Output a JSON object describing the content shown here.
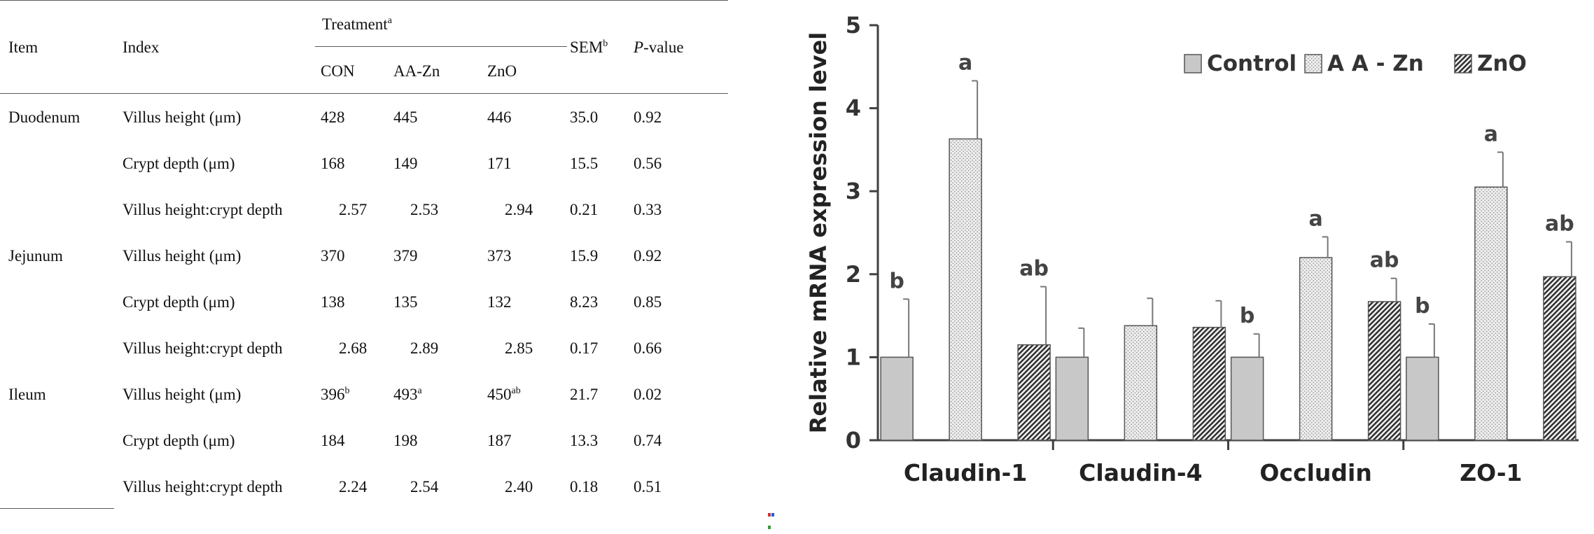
{
  "table": {
    "headers": {
      "item": "Item",
      "index": "Index",
      "treatment": "Treatment",
      "treatment_sup": "a",
      "sem": "SEM",
      "sem_sup": "b",
      "pvalue_italic": "P",
      "pvalue_rest": "-value",
      "groups": [
        "CON",
        "AA-Zn",
        "ZnO"
      ]
    },
    "rows": [
      {
        "item": "Duodenum",
        "index": "Villus height (μm)",
        "con": "428",
        "con_sup": "",
        "aazn": "445",
        "aazn_sup": "",
        "zno": "446",
        "zno_sup": "",
        "sem": "35.0",
        "p": "0.92"
      },
      {
        "item": "",
        "index": "Crypt depth (μm)",
        "con": "168",
        "con_sup": "",
        "aazn": "149",
        "aazn_sup": "",
        "zno": "171",
        "zno_sup": "",
        "sem": "15.5",
        "p": "0.56"
      },
      {
        "item": "",
        "index": "Villus height:crypt depth",
        "con": "2.57",
        "con_sup": "",
        "aazn": "2.53",
        "aazn_sup": "",
        "zno": "2.94",
        "zno_sup": "",
        "sem": "0.21",
        "p": "0.33"
      },
      {
        "item": "Jejunum",
        "index": "Villus height (μm)",
        "con": "370",
        "con_sup": "",
        "aazn": "379",
        "aazn_sup": "",
        "zno": "373",
        "zno_sup": "",
        "sem": "15.9",
        "p": "0.92"
      },
      {
        "item": "",
        "index": "Crypt depth (μm)",
        "con": "138",
        "con_sup": "",
        "aazn": "135",
        "aazn_sup": "",
        "zno": "132",
        "zno_sup": "",
        "sem": "8.23",
        "p": "0.85"
      },
      {
        "item": "",
        "index": "Villus height:crypt depth",
        "con": "2.68",
        "con_sup": "",
        "aazn": "2.89",
        "aazn_sup": "",
        "zno": "2.85",
        "zno_sup": "",
        "sem": "0.17",
        "p": "0.66"
      },
      {
        "item": "Ileum",
        "index": "Villus height (μm)",
        "con": "396",
        "con_sup": "b",
        "aazn": "493",
        "aazn_sup": "a",
        "zno": "450",
        "zno_sup": "ab",
        "sem": "21.7",
        "p": "0.02"
      },
      {
        "item": "",
        "index": "Crypt depth (μm)",
        "con": "184",
        "con_sup": "",
        "aazn": "198",
        "aazn_sup": "",
        "zno": "187",
        "zno_sup": "",
        "sem": "13.3",
        "p": "0.74"
      },
      {
        "item": "",
        "index": "Villus height:crypt depth",
        "con": "2.24",
        "con_sup": "",
        "aazn": "2.54",
        "aazn_sup": "",
        "zno": "2.40",
        "zno_sup": "",
        "sem": "0.18",
        "p": "0.51"
      }
    ]
  },
  "chart_data": {
    "type": "bar",
    "ylabel": "Relative mRNA expression level",
    "xlabel": "",
    "ylim": [
      0,
      5
    ],
    "yticks": [
      "0",
      "1",
      "2",
      "3",
      "4",
      "5"
    ],
    "legend_position": "top-right",
    "categories": [
      "Claudin-1",
      "Claudin-4",
      "Occludin",
      "ZO-1"
    ],
    "series": [
      {
        "name": "Control",
        "values": [
          1.0,
          1.0,
          1.0,
          1.0
        ],
        "errors": [
          0.7,
          0.35,
          0.28,
          0.4
        ],
        "letters": [
          "b",
          "",
          "b",
          "b"
        ]
      },
      {
        "name": "A A - Zn",
        "values": [
          3.63,
          1.38,
          2.2,
          3.05
        ],
        "errors": [
          0.7,
          0.33,
          0.25,
          0.42
        ],
        "letters": [
          "a",
          "",
          "a",
          "a"
        ]
      },
      {
        "name": "ZnO",
        "values": [
          1.15,
          1.36,
          1.67,
          1.97
        ],
        "errors": [
          0.7,
          0.32,
          0.28,
          0.42
        ],
        "letters": [
          "ab",
          "",
          "ab",
          "ab"
        ]
      }
    ],
    "colors": {
      "control": "#c8c8c8",
      "aazn": "#eeeeee",
      "zno": "#8a8a8a",
      "axis": "#404040"
    }
  }
}
